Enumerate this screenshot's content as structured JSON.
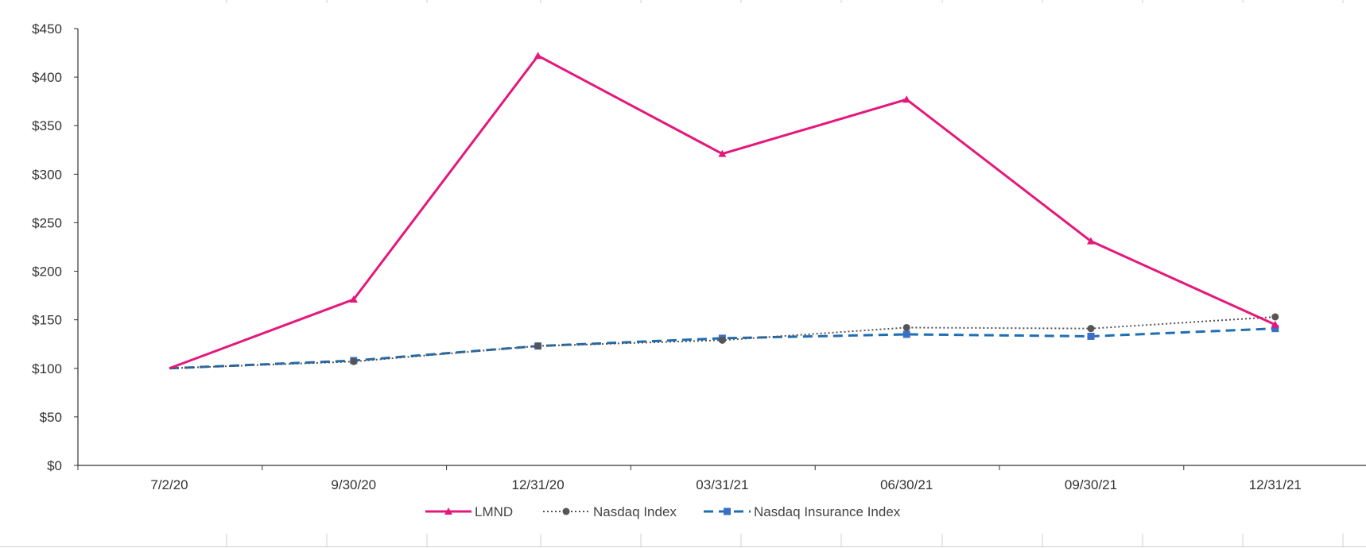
{
  "chart_data": {
    "type": "line",
    "title": "",
    "xlabel": "",
    "ylabel": "",
    "categories": [
      "7/2/20",
      "9/30/20",
      "12/31/20",
      "03/31/21",
      "06/30/21",
      "09/30/21",
      "12/31/21"
    ],
    "y_ticks": [
      "$0",
      "$50",
      "$100",
      "$150",
      "$200",
      "$250",
      "$300",
      "$350",
      "$400",
      "$450"
    ],
    "ylim": [
      0,
      450
    ],
    "grid": false,
    "legend_position": "bottom",
    "series": [
      {
        "name": "LMND",
        "values": [
          100,
          171,
          422,
          321,
          377,
          231,
          145
        ],
        "color": "#e6177a",
        "line_style": "solid",
        "marker": "triangle"
      },
      {
        "name": "Nasdaq Index",
        "values": [
          100,
          107,
          123,
          129,
          142,
          141,
          153
        ],
        "color": "#555555",
        "line_style": "dotted",
        "marker": "circle"
      },
      {
        "name": "Nasdaq Insurance Index",
        "values": [
          100,
          108,
          123,
          131,
          135,
          133,
          141
        ],
        "color": "#1f6eb3",
        "line_style": "dashed",
        "marker": "square",
        "marker_color": "#3b6fc4"
      }
    ]
  }
}
